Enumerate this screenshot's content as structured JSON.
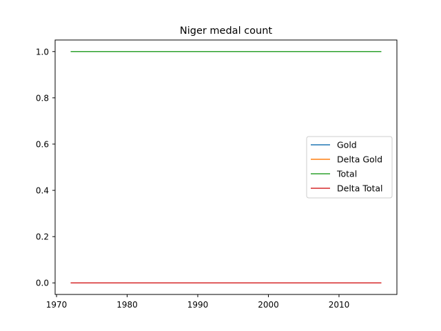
{
  "chart_data": {
    "type": "line",
    "title": "Niger medal count",
    "xlabel": "",
    "ylabel": "",
    "x": [
      1972,
      2016
    ],
    "xlim": [
      1969.8,
      2018.2
    ],
    "ylim": [
      -0.05,
      1.05
    ],
    "xticks": [
      1970,
      1980,
      1990,
      2000,
      2010
    ],
    "yticks": [
      0.0,
      0.2,
      0.4,
      0.6,
      0.8,
      1.0
    ],
    "xtick_labels": [
      "1970",
      "1980",
      "1990",
      "2000",
      "2010"
    ],
    "ytick_labels": [
      "0.0",
      "0.2",
      "0.4",
      "0.6",
      "0.8",
      "1.0"
    ],
    "grid": false,
    "legend_position": "center-right",
    "series": [
      {
        "name": "Gold",
        "values": [
          0,
          0
        ],
        "color": "#1f77b4"
      },
      {
        "name": "Delta Gold",
        "values": [
          0,
          0
        ],
        "color": "#ff7f0e"
      },
      {
        "name": "Total",
        "values": [
          1,
          1
        ],
        "color": "#2ca02c"
      },
      {
        "name": "Delta Total",
        "values": [
          0,
          0
        ],
        "color": "#d62728"
      }
    ]
  }
}
